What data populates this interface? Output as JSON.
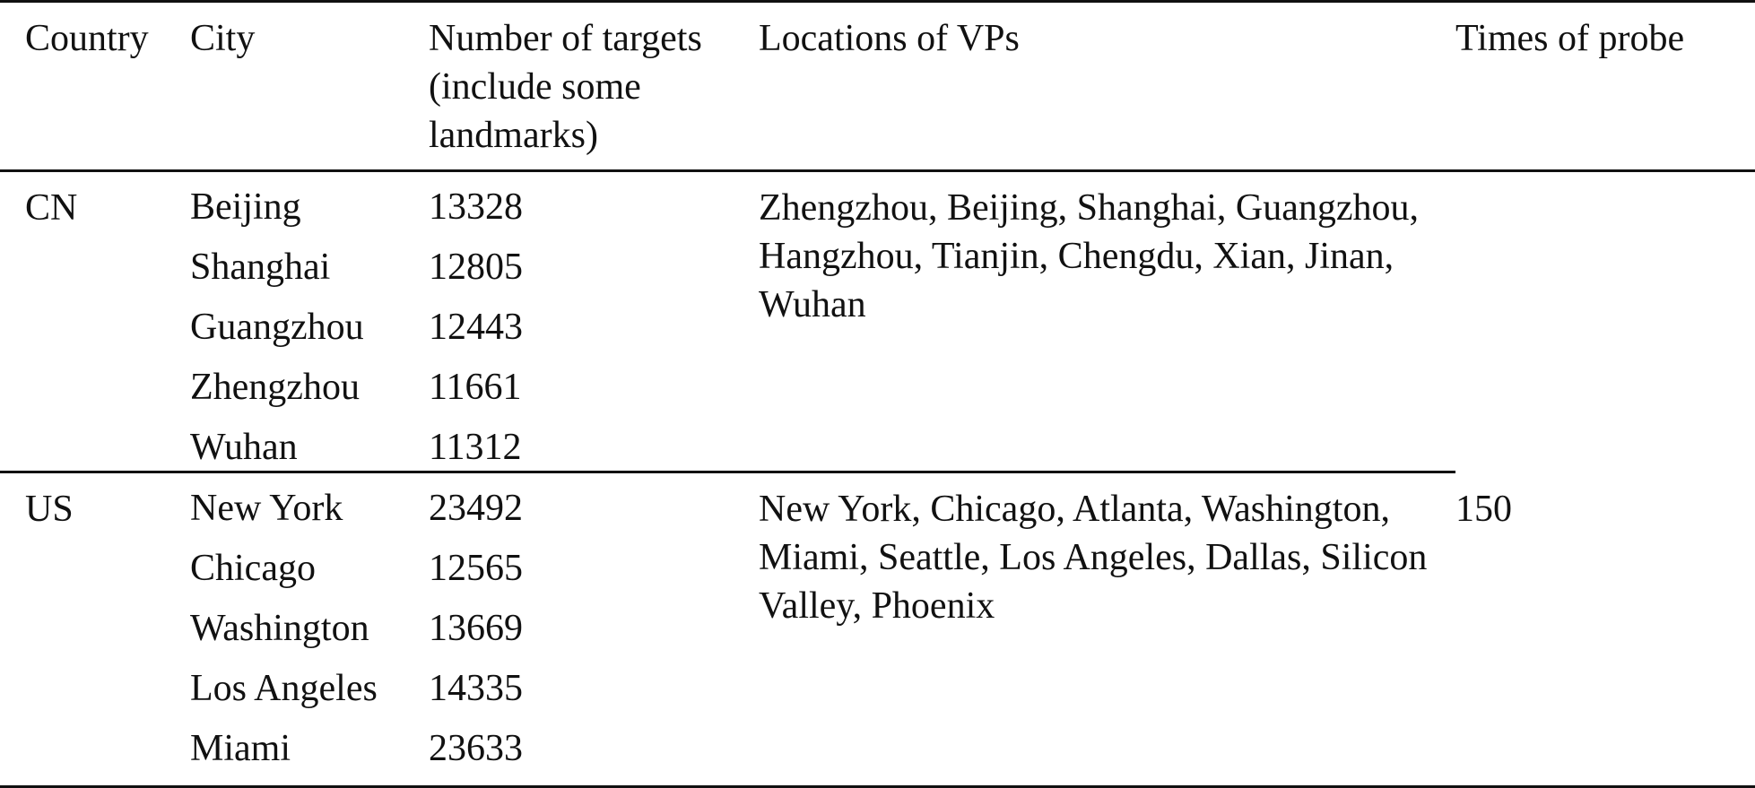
{
  "headers": {
    "country": "Country",
    "city": "City",
    "targets": "Number of targets (include some landmarks)",
    "vps": "Locations of VPs",
    "probe": "Times of probe"
  },
  "groups": [
    {
      "country": "CN",
      "cities": [
        "Beijing",
        "Shanghai",
        "Guangzhou",
        "Zhengzhou",
        "Wuhan"
      ],
      "targets": [
        "13328",
        "12805",
        "12443",
        "11661",
        "11312"
      ],
      "vps": "Zhengzhou, Beijing, Shanghai, Guangzhou, Hangzhou, Tianjin, Chengdu, Xian, Jinan, Wuhan"
    },
    {
      "country": "US",
      "cities": [
        "New York",
        "Chicago",
        "Washington",
        "Los Angeles",
        "Miami"
      ],
      "targets": [
        "23492",
        "12565",
        "13669",
        "14335",
        "23633"
      ],
      "vps": "New York, Chicago, Atlanta, Washington, Miami, Seattle, Los Angeles, Dallas, Silicon Valley, Phoenix"
    }
  ],
  "times_of_probe": "150"
}
